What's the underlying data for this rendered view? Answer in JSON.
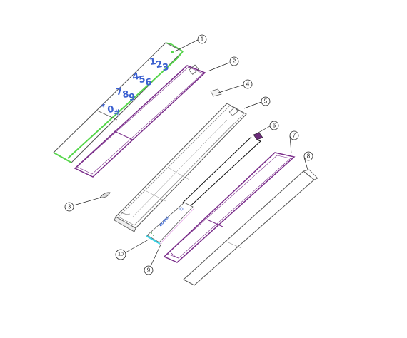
{
  "callouts": [
    "1",
    "2",
    "3",
    "4",
    "5",
    "6",
    "7",
    "8",
    "9",
    "10"
  ],
  "keypad_digits": [
    "1",
    "2",
    "3",
    "4",
    "5",
    "6",
    "7",
    "8",
    "9",
    "*",
    "0",
    "#"
  ],
  "colors": {
    "outline": "#555555",
    "green_part": "#55d64a",
    "purple_part": "#7a2d8a",
    "black_cable": "#111111",
    "cyan_part": "#39d4e6",
    "digit_blue": "#3a5fd0"
  }
}
